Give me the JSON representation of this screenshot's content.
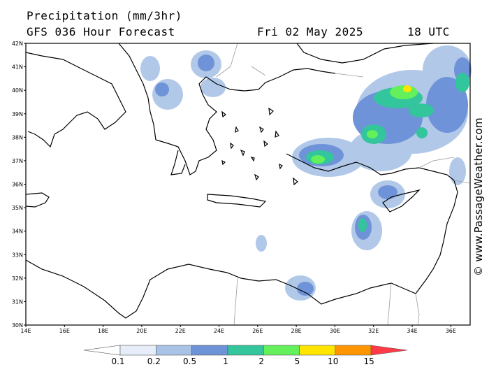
{
  "header": {
    "title": "Precipitation (mm/3hr)",
    "model": "GFS 036 Hour Forecast",
    "date": "Fri 02 May 2025",
    "time": "18 UTC"
  },
  "watermark": "© www.PassageWeather.com",
  "map": {
    "lon_range": [
      14,
      37
    ],
    "lat_range": [
      30,
      42
    ],
    "lon_ticks": [
      "14E",
      "16E",
      "18E",
      "20E",
      "22E",
      "24E",
      "26E",
      "28E",
      "30E",
      "32E",
      "34E",
      "36E"
    ],
    "lat_ticks": [
      "30N",
      "31N",
      "32N",
      "33N",
      "34N",
      "35N",
      "36N",
      "37N",
      "38N",
      "39N",
      "40N",
      "41N",
      "42N"
    ],
    "colors": {
      "sea": "#ffffff",
      "coast": "#000000",
      "border": "#9a9a9a"
    }
  },
  "legend": {
    "labels": [
      "0.1",
      "0.2",
      "0.5",
      "1",
      "2",
      "5",
      "10",
      "15"
    ],
    "colors": [
      "#ffffff",
      "#e6edf8",
      "#a9c3e6",
      "#6f93d8",
      "#33c59b",
      "#63f05a",
      "#ffe400",
      "#ff9500",
      "#ff3a48"
    ]
  }
}
